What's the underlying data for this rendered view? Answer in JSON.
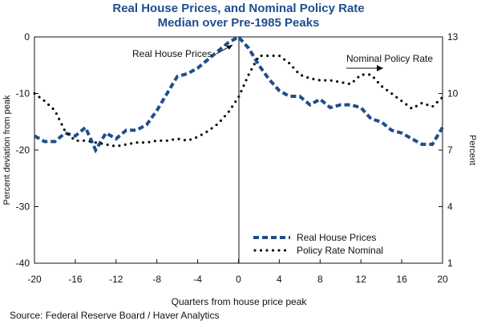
{
  "chart_data": {
    "type": "line",
    "title": "Real House Prices, and Nominal Policy Rate",
    "subtitle": "Median over Pre-1985 Peaks",
    "xlabel": "Quarters from house price peak",
    "ylabel_left": "Percent deviation from peak",
    "ylabel_right": "Percent",
    "xlim": [
      -20,
      20
    ],
    "xticks": [
      -20,
      -16,
      -12,
      -8,
      -4,
      0,
      4,
      8,
      12,
      16,
      20
    ],
    "ylim_left": [
      -40,
      0
    ],
    "yticks_left": [
      0,
      -10,
      -20,
      -30,
      -40
    ],
    "ylim_right": [
      1,
      13
    ],
    "yticks_right": [
      13,
      10,
      7,
      4,
      1
    ],
    "grid": false,
    "legend_position": "bottom-right",
    "series": [
      {
        "name": "Real House Prices",
        "axis": "left",
        "color": "#1f4e8c",
        "style": "dashed",
        "x": [
          -20,
          -19,
          -18,
          -17,
          -16,
          -15,
          -14,
          -13,
          -12,
          -11,
          -10,
          -9,
          -8,
          -7,
          -6,
          -5,
          -4,
          -3,
          -2,
          -1,
          0,
          1,
          2,
          3,
          4,
          5,
          6,
          7,
          8,
          9,
          10,
          11,
          12,
          13,
          14,
          15,
          16,
          17,
          18,
          19,
          20
        ],
        "values": [
          -17.5,
          -18.5,
          -18.5,
          -17.0,
          -17.5,
          -16.0,
          -20.0,
          -17.0,
          -18.0,
          -16.5,
          -16.5,
          -15.5,
          -13.0,
          -10.0,
          -7.0,
          -6.5,
          -5.5,
          -4.0,
          -2.5,
          -1.0,
          0.0,
          -2.0,
          -5.0,
          -7.5,
          -9.5,
          -10.5,
          -10.5,
          -12.0,
          -11.0,
          -12.5,
          -12.0,
          -12.0,
          -12.5,
          -14.5,
          -15.0,
          -16.5,
          -17.0,
          -18.0,
          -19.0,
          -19.0,
          -16.0
        ]
      },
      {
        "name": "Policy Rate Nominal",
        "axis": "right",
        "color": "#111111",
        "style": "dotted",
        "x": [
          -20,
          -19,
          -18,
          -17,
          -16,
          -15,
          -14,
          -13,
          -12,
          -11,
          -10,
          -9,
          -8,
          -7,
          -6,
          -5,
          -4,
          -3,
          -2,
          -1,
          0,
          1,
          2,
          3,
          4,
          5,
          6,
          7,
          8,
          9,
          10,
          11,
          12,
          13,
          14,
          15,
          16,
          17,
          18,
          19,
          20
        ],
        "values": [
          10.0,
          9.6,
          9.1,
          8.0,
          7.5,
          7.5,
          7.4,
          7.3,
          7.2,
          7.3,
          7.4,
          7.4,
          7.5,
          7.5,
          7.6,
          7.5,
          7.7,
          8.0,
          8.4,
          9.0,
          9.8,
          11.0,
          12.0,
          12.0,
          12.0,
          11.6,
          11.0,
          10.8,
          10.7,
          10.7,
          10.6,
          10.5,
          11.0,
          11.0,
          10.4,
          10.0,
          9.6,
          9.2,
          9.5,
          9.3,
          9.8
        ]
      }
    ],
    "annotations": [
      {
        "text": "Real House Prices",
        "arrow": "right",
        "near_series": "Real House Prices"
      },
      {
        "text": "Nominal Policy Rate",
        "arrow": "right",
        "near_series": "Policy Rate Nominal"
      }
    ],
    "legend": [
      "Real House Prices",
      "Policy Rate Nominal"
    ]
  },
  "source_note": "Source: Federal Reserve Board / Haver Analytics"
}
